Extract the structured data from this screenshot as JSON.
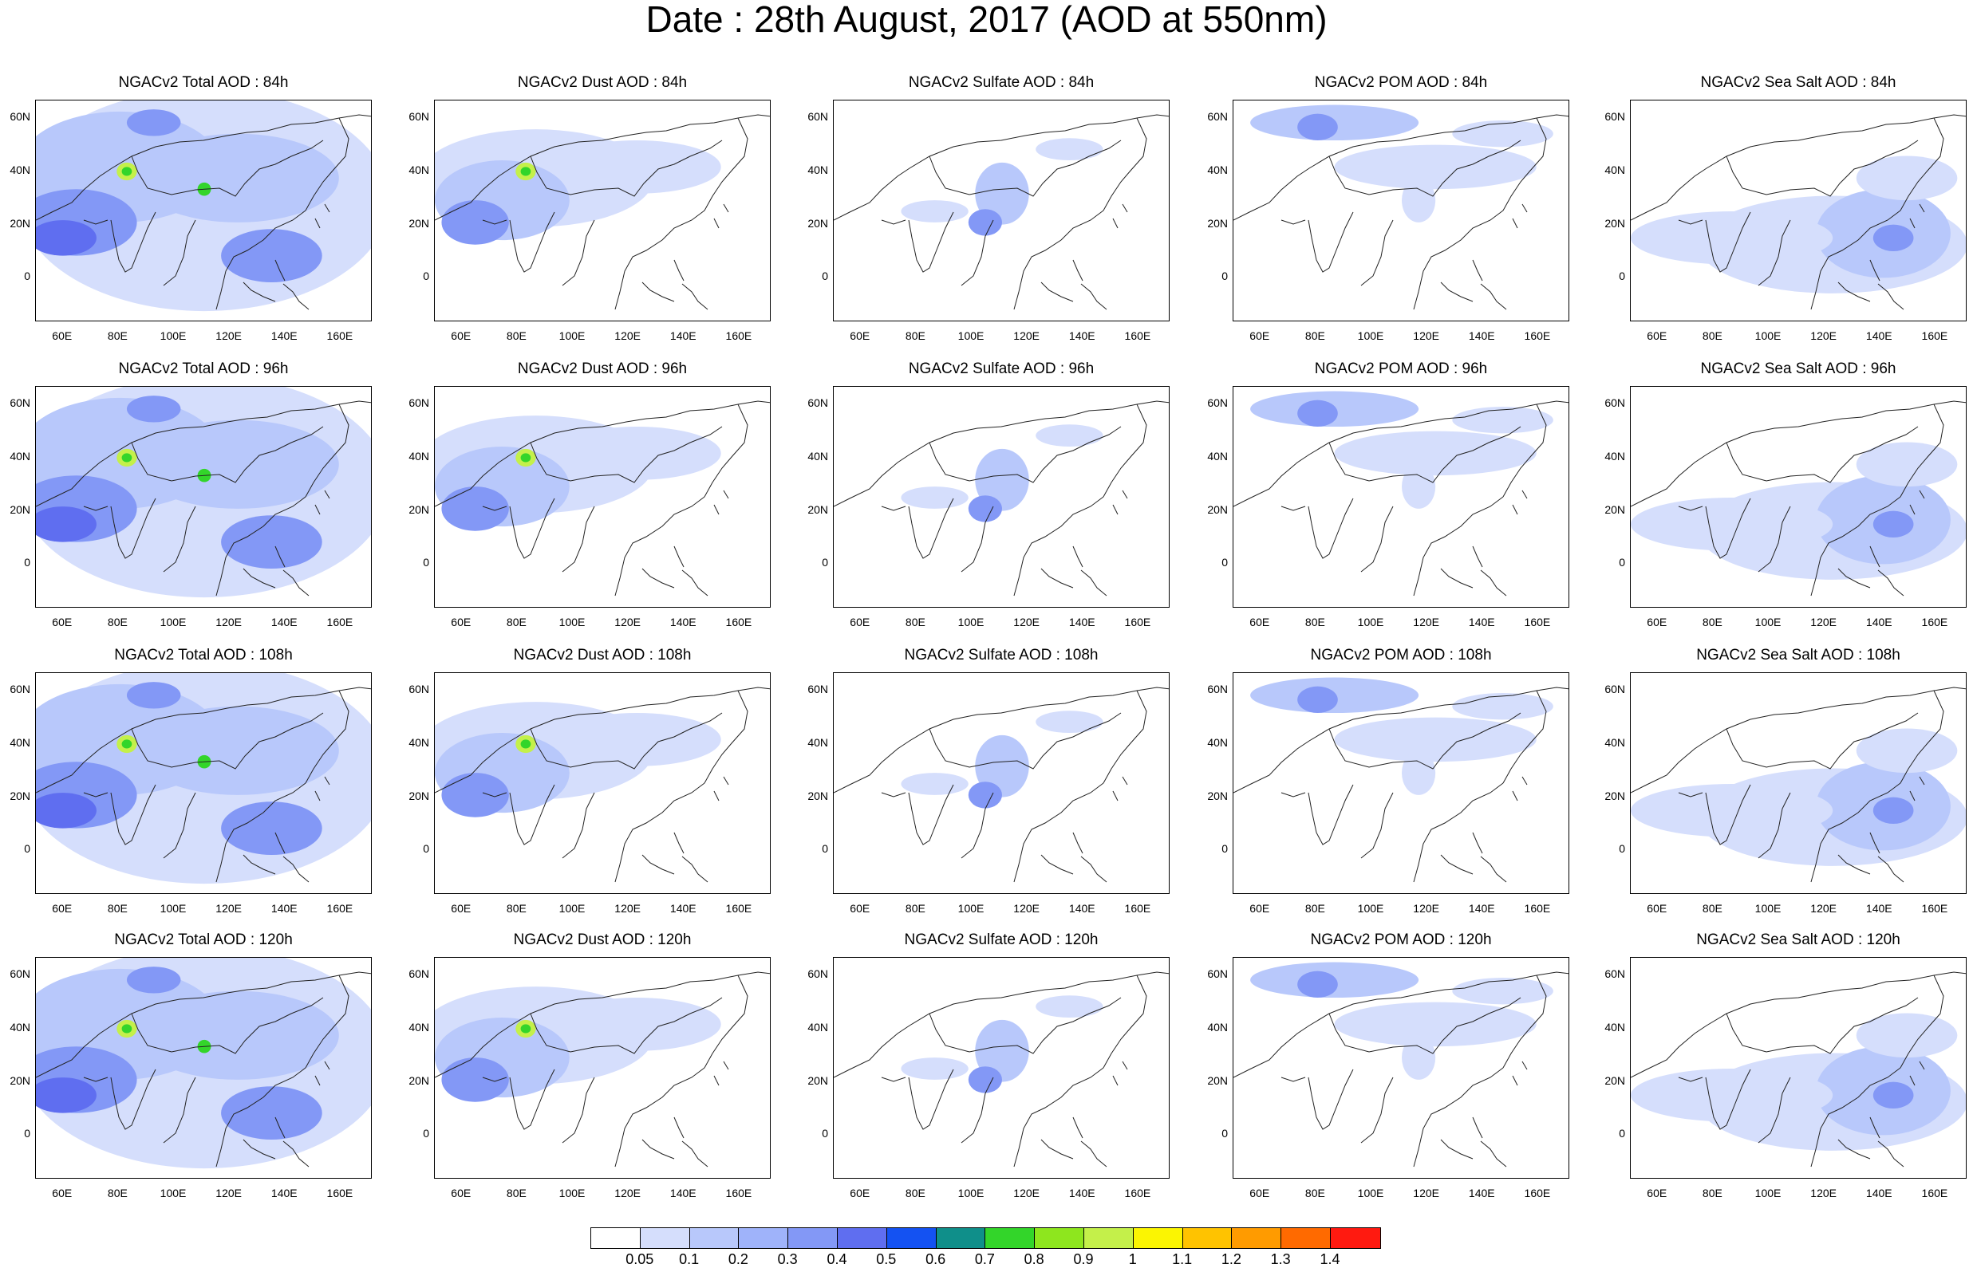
{
  "title": "Date : 28th August, 2017 (AOD at 550nm)",
  "x_ticks": [
    "60E",
    "80E",
    "100E",
    "120E",
    "140E",
    "160E"
  ],
  "y_ticks": [
    "60N",
    "40N",
    "20N",
    "0"
  ],
  "panels": [
    [
      "NGACv2 Total AOD : 84h",
      "NGACv2 Dust AOD : 84h",
      "NGACv2 Sulfate AOD : 84h",
      "NGACv2 POM AOD : 84h",
      "NGACv2 Sea Salt AOD : 84h"
    ],
    [
      "NGACv2 Total AOD : 96h",
      "NGACv2 Dust AOD : 96h",
      "NGACv2 Sulfate AOD : 96h",
      "NGACv2 POM AOD : 96h",
      "NGACv2 Sea Salt AOD : 96h"
    ],
    [
      "NGACv2 Total AOD : 108h",
      "NGACv2 Dust AOD : 108h",
      "NGACv2 Sulfate AOD : 108h",
      "NGACv2 POM AOD : 108h",
      "NGACv2 Sea Salt AOD : 108h"
    ],
    [
      "NGACv2 Total AOD : 120h",
      "NGACv2 Dust AOD : 120h",
      "NGACv2 Sulfate AOD : 120h",
      "NGACv2 POM AOD : 120h",
      "NGACv2 Sea Salt  AOD : 120h"
    ]
  ],
  "colorbar": {
    "labels": [
      "0.05",
      "0.1",
      "0.2",
      "0.3",
      "0.4",
      "0.5",
      "0.6",
      "0.7",
      "0.8",
      "0.9",
      "1",
      "1.1",
      "1.2",
      "1.3",
      "1.4"
    ],
    "colors": [
      "#ffffff",
      "#d5defc",
      "#b8c8fb",
      "#9fb3fa",
      "#8398f6",
      "#5f6ef0",
      "#1452f2",
      "#0f8f8a",
      "#33d52a",
      "#8ee61e",
      "#c4f04a",
      "#fbf502",
      "#ffc300",
      "#ff9b00",
      "#ff6a00",
      "#ff1a10"
    ]
  },
  "field_colors": {
    "light": "#d5defc",
    "medium": "#b8c8fb",
    "strong": "#8398f6",
    "deep": "#5f6ef0",
    "green": "#33d52a",
    "yellow": "#c4f04a"
  }
}
